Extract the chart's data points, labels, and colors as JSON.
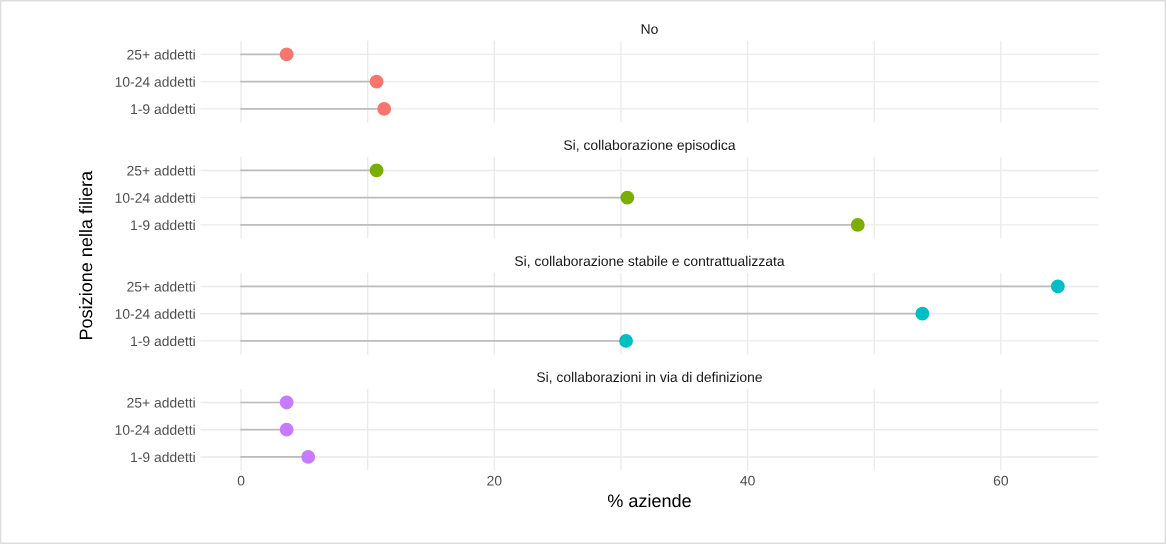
{
  "chart_data": [
    {
      "type": "lollipop",
      "orientation": "horizontal",
      "title": "No",
      "ylabel": "Posizione nella filiera",
      "categories": [
        "25+ addetti",
        "10-24 addetti",
        "1-9 addetti"
      ],
      "values": [
        3.6,
        10.7,
        11.3
      ],
      "color": "#f8766d",
      "xlim": [
        -3.2,
        67.7
      ],
      "xticks": [
        0,
        {
          "value": 10,
          "label": null
        },
        20,
        {
          "value": 30,
          "label": null
        },
        40,
        {
          "value": 50,
          "label": null
        },
        60
      ],
      "grid": true,
      "tick_labels": "y"
    },
    {
      "type": "lollipop",
      "orientation": "horizontal",
      "title": "Si, collaborazione episodica",
      "categories": [
        "25+ addetti",
        "10-24 addetti",
        "1-9 addetti"
      ],
      "values": [
        10.7,
        30.5,
        48.7
      ],
      "color": "#7cae00",
      "xlim": [
        -3.2,
        67.7
      ],
      "xticks": [
        0,
        {
          "value": 10,
          "label": null
        },
        20,
        {
          "value": 30,
          "label": null
        },
        40,
        {
          "value": 50,
          "label": null
        },
        60
      ],
      "grid": true,
      "tick_labels": "y"
    },
    {
      "type": "lollipop",
      "orientation": "horizontal",
      "title": "Si, collaborazione stabile e contrattualizzata",
      "categories": [
        "25+ addetti",
        "10-24 addetti",
        "1-9 addetti"
      ],
      "values": [
        64.5,
        53.8,
        30.4
      ],
      "color": "#00bfc4",
      "xlim": [
        -3.2,
        67.7
      ],
      "xticks": [
        0,
        {
          "value": 10,
          "label": null
        },
        20,
        {
          "value": 30,
          "label": null
        },
        40,
        {
          "value": 50,
          "label": null
        },
        60
      ],
      "grid": true,
      "tick_labels": "y"
    },
    {
      "type": "lollipop",
      "orientation": "horizontal",
      "title": "Si, collaborazioni in via di definizione",
      "xlabel": "% aziende",
      "categories": [
        "25+ addetti",
        "10-24 addetti",
        "1-9 addetti"
      ],
      "values": [
        3.6,
        3.6,
        5.3
      ],
      "color": "#c77cff",
      "xlim": [
        -3.2,
        67.7
      ],
      "xticks": [
        0,
        {
          "value": 10,
          "label": null
        },
        20,
        {
          "value": 30,
          "label": null
        },
        40,
        {
          "value": 50,
          "label": null
        },
        60
      ],
      "grid": true
    }
  ]
}
